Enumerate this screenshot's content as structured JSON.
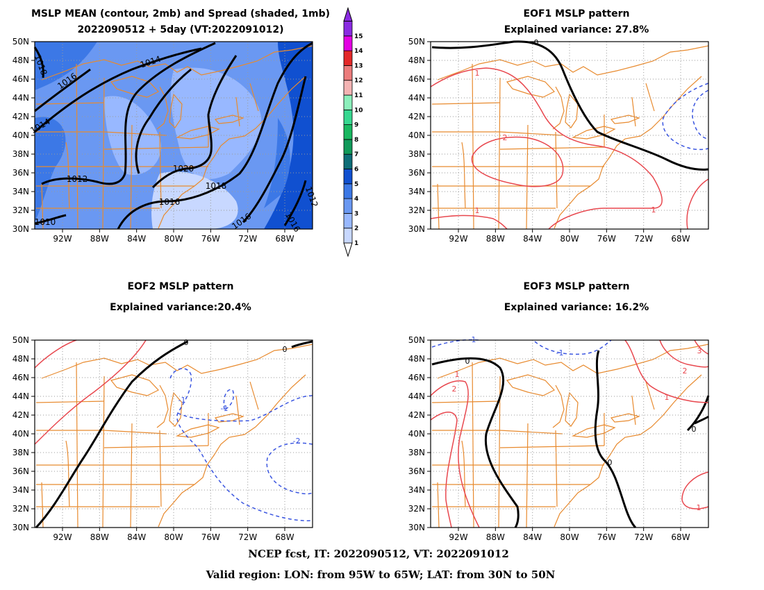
{
  "panels": {
    "mean": {
      "title1": "MSLP MEAN (contour, 2mb) and Spread (shaded, 1mb)",
      "title2": "2022090512 + 5day (VT:2022091012)",
      "contour_labels": [
        "1018",
        "1016",
        "1014",
        "1014",
        "1020",
        "1018",
        "1016",
        "1012",
        "1016",
        "1010",
        "1016",
        "1012",
        "1014"
      ]
    },
    "eof1": {
      "title1": "EOF1 MSLP pattern",
      "title2": "Explained variance: 27.8%",
      "contour_labels": [
        "0",
        "1",
        "2",
        "1",
        "1"
      ]
    },
    "eof2": {
      "title1": "EOF2 MSLP pattern",
      "title2": "Explained variance:20.4%",
      "contour_labels": [
        "0",
        "0",
        "-1",
        "-1",
        "-2"
      ]
    },
    "eof3": {
      "title1": "EOF3 MSLP pattern",
      "title2": "Explained variance: 16.2%",
      "contour_labels": [
        "-1",
        "-1",
        "0",
        "1",
        "2",
        "3",
        "2",
        "1",
        "0",
        "0",
        "1"
      ]
    }
  },
  "axes": {
    "lat_labels": [
      "50N",
      "48N",
      "46N",
      "44N",
      "42N",
      "40N",
      "38N",
      "36N",
      "34N",
      "32N",
      "30N"
    ],
    "lon_labels": [
      "92W",
      "88W",
      "84W",
      "80W",
      "76W",
      "72W",
      "68W"
    ]
  },
  "colorbar": {
    "labels": [
      "1",
      "2",
      "3",
      "4",
      "5",
      "6",
      "7",
      "8",
      "9",
      "10",
      "11",
      "12",
      "13",
      "14",
      "15"
    ],
    "colors": [
      "#c8d8ff",
      "#98b8ff",
      "#6a98f2",
      "#3c78e6",
      "#1050d0",
      "#0e6e78",
      "#119a5a",
      "#18b860",
      "#36d890",
      "#8cf0bc",
      "#f4b4b4",
      "#ec7c7c",
      "#e42828",
      "#e400e4",
      "#8a2be2"
    ]
  },
  "legend_colors": {
    "positive": "#e8474e",
    "negative": "#3a55e0",
    "zero": "#000000",
    "coast": "#e88a2e"
  },
  "footer": {
    "line1": "NCEP fcst, IT: 2022090512, VT: 2022091012",
    "line2": "Valid region: LON: from 95W to 65W; LAT: from 30N to 50N"
  }
}
